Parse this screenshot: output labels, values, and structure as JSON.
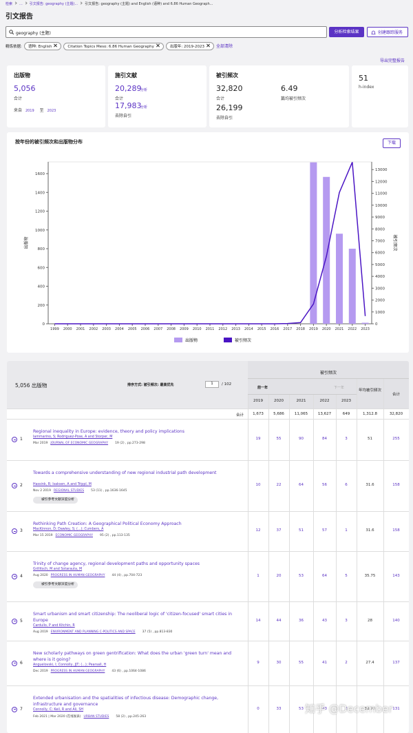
{
  "breadcrumb": [
    "检索",
    "...",
    "引文报告: geography (主题)...",
    "引文报告: geography (主题) and English (语种) and 6.86 Human Geograph..."
  ],
  "title": "引文报告",
  "search": {
    "query": "geography (主题)",
    "analyze": "分析检索结果",
    "alert": "创建跟踪服务"
  },
  "filters": {
    "label": "精炼依据:",
    "chips": [
      "语种: English",
      "Citation Topics Meso: 6.86 Human Geography",
      "出版年: 2019-2023"
    ],
    "clear": "全部清除"
  },
  "export": "导出完整报告",
  "cards": {
    "publications": {
      "title": "出版物",
      "value": "5,056",
      "caption": "合计",
      "from": "来自",
      "from_year": "2019",
      "to": "至",
      "to_year": "2023"
    },
    "citing": {
      "title": "施引文献",
      "total": "20,289",
      "total_caption": "合计",
      "analyze": "分析",
      "excluding": "17,983",
      "excluding_caption": "去除自引"
    },
    "citations": {
      "title": "被引频次",
      "total": "32,820",
      "total_caption": "合计",
      "excluding": "26,199",
      "excluding_caption": "去除自引",
      "average": "6.49",
      "average_caption": "篇均被引频次"
    },
    "hindex": {
      "value": "51",
      "caption": "h-index"
    }
  },
  "chart": {
    "title": "按年份的被引频次和出版物分布",
    "download": "下载",
    "x": [
      1999,
      2000,
      2001,
      2002,
      2003,
      2004,
      2005,
      2006,
      2007,
      2008,
      2009,
      2010,
      2011,
      2012,
      2013,
      2014,
      2015,
      2016,
      2017,
      2018,
      2019,
      2020,
      2021,
      2022,
      2023
    ],
    "series": [
      {
        "name": "出版物",
        "color": "#b59af0",
        "type": "bar",
        "values": [
          0,
          0,
          0,
          0,
          0,
          0,
          0,
          0,
          0,
          0,
          0,
          0,
          0,
          0,
          0,
          0,
          0,
          0,
          0,
          0,
          1720,
          1565,
          960,
          800,
          11
        ]
      },
      {
        "name": "被引频次",
        "color": "#4a14c4",
        "type": "line",
        "axis": "y2",
        "values": [
          0,
          0,
          0,
          0,
          0,
          0,
          0,
          0,
          0,
          0,
          0,
          0,
          0,
          0,
          0,
          0,
          0,
          0,
          20,
          100,
          1673,
          5686,
          11065,
          13627,
          649
        ]
      }
    ],
    "ylabel": "出版物",
    "y2label": "被引频次",
    "ylim": [
      0,
      1725
    ],
    "yticks": [
      0,
      200,
      400,
      600,
      800,
      1000,
      1200,
      1400,
      1600
    ],
    "y2lim": [
      0,
      13650
    ],
    "y2ticks": [
      0,
      1000,
      2000,
      3000,
      4000,
      5000,
      6000,
      7000,
      8000,
      9000,
      10000,
      11000,
      12000,
      13000
    ]
  },
  "table": {
    "count": "5,056 出版物",
    "sort": "排序方式: 被引频次: 最高优先",
    "page": "1",
    "pages": "/ 102",
    "group": "被引频次",
    "prev": "前一年",
    "next": "下一年",
    "years": [
      "2019",
      "2020",
      "2021",
      "2022",
      "2023"
    ],
    "average": "年均被引频次",
    "total": "合计",
    "totals_label": "合计",
    "totals": [
      "1,673",
      "5,686",
      "11,065",
      "13,627",
      "649",
      "1,312.8",
      "32,820"
    ],
    "deep": "被引参考文献深度分析",
    "rows": [
      {
        "rank": "1",
        "title": "Regional inequality in Europe: evidence, theory and policy implications",
        "authors": "Iammarino, S; Rodriguez-Pose, A and Storper, M",
        "date": "Mar 2019",
        "source": "JOURNAL OF ECONOMIC GEOGRAPHY",
        "volume": "19 (2) , pp.273-298",
        "cells": [
          "19",
          "55",
          "90",
          "84",
          "3",
          "51",
          "255"
        ]
      },
      {
        "rank": "2",
        "title": "Towards a comprehensive understanding of new regional industrial path development",
        "authors": "Hassink, R; Isaksen, A and Trippl, M",
        "date": "Nov 2 2019",
        "source": "REGIONAL STUDIES",
        "volume": "53 (11) , pp.1636-1645",
        "deep": true,
        "cells": [
          "10",
          "22",
          "64",
          "56",
          "6",
          "31.6",
          "158"
        ]
      },
      {
        "rank": "3",
        "title": "Rethinking Path Creation: A Geographical Political Economy Approach",
        "authors": "MacKinnon, D; Dawley, S; (...); Cumbers, A",
        "date": "Mar 15 2019",
        "source": "ECONOMIC GEOGRAPHY",
        "volume": "95 (2) , pp.113-135",
        "cells": [
          "12",
          "37",
          "51",
          "57",
          "1",
          "31.6",
          "158"
        ]
      },
      {
        "rank": "4",
        "title": "Trinity of change agency, regional development paths and opportunity spaces",
        "authors": "Grillitsch, M and Sotarauta, M",
        "date": "Aug 2020",
        "source": "PROGRESS IN HUMAN GEOGRAPHY",
        "volume": "44 (4) , pp.704-723",
        "deep": true,
        "cells": [
          "1",
          "20",
          "53",
          "64",
          "5",
          "35.75",
          "143"
        ]
      },
      {
        "rank": "5",
        "title": "Smart urbanism and smart citizenship: The neoliberal logic of 'citizen-focused' smart cities in Europe",
        "authors": "Cardullo, P and Kitchin, R",
        "date": "Aug 2019",
        "source": "ENVIRONMENT AND PLANNING C-POLITICS AND SPACE",
        "volume": "37 (5) , pp.813-830",
        "cells": [
          "14",
          "44",
          "36",
          "43",
          "3",
          "28",
          "140"
        ]
      },
      {
        "rank": "6",
        "title": "New scholarly pathways on green gentrification: What does the urban 'green turn' mean and where is it going?",
        "authors": "Anguelovski, I; Connolly, JJT; (...); Pearsall, H",
        "date": "Dec 2019",
        "source": "PROGRESS IN HUMAN GEOGRAPHY",
        "volume": "43 (6) , pp.1064-1086",
        "cells": [
          "9",
          "30",
          "55",
          "41",
          "2",
          "27.4",
          "137"
        ]
      },
      {
        "rank": "7",
        "title": "Extended urbanisation and the spatialities of infectious disease: Demographic change, infrastructure and governance",
        "authors": "Connolly, C; Keil, R and Ali, SH",
        "date": "Feb 2021 | Mar 2020 (在线发表)",
        "source": "URBAN STUDIES",
        "volume": "58 (2) , pp.245-263",
        "cells": [
          "0",
          "33",
          "53",
          "43",
          "2",
          "32.75",
          "131"
        ]
      }
    ]
  },
  "watermark": "知乎 @December"
}
